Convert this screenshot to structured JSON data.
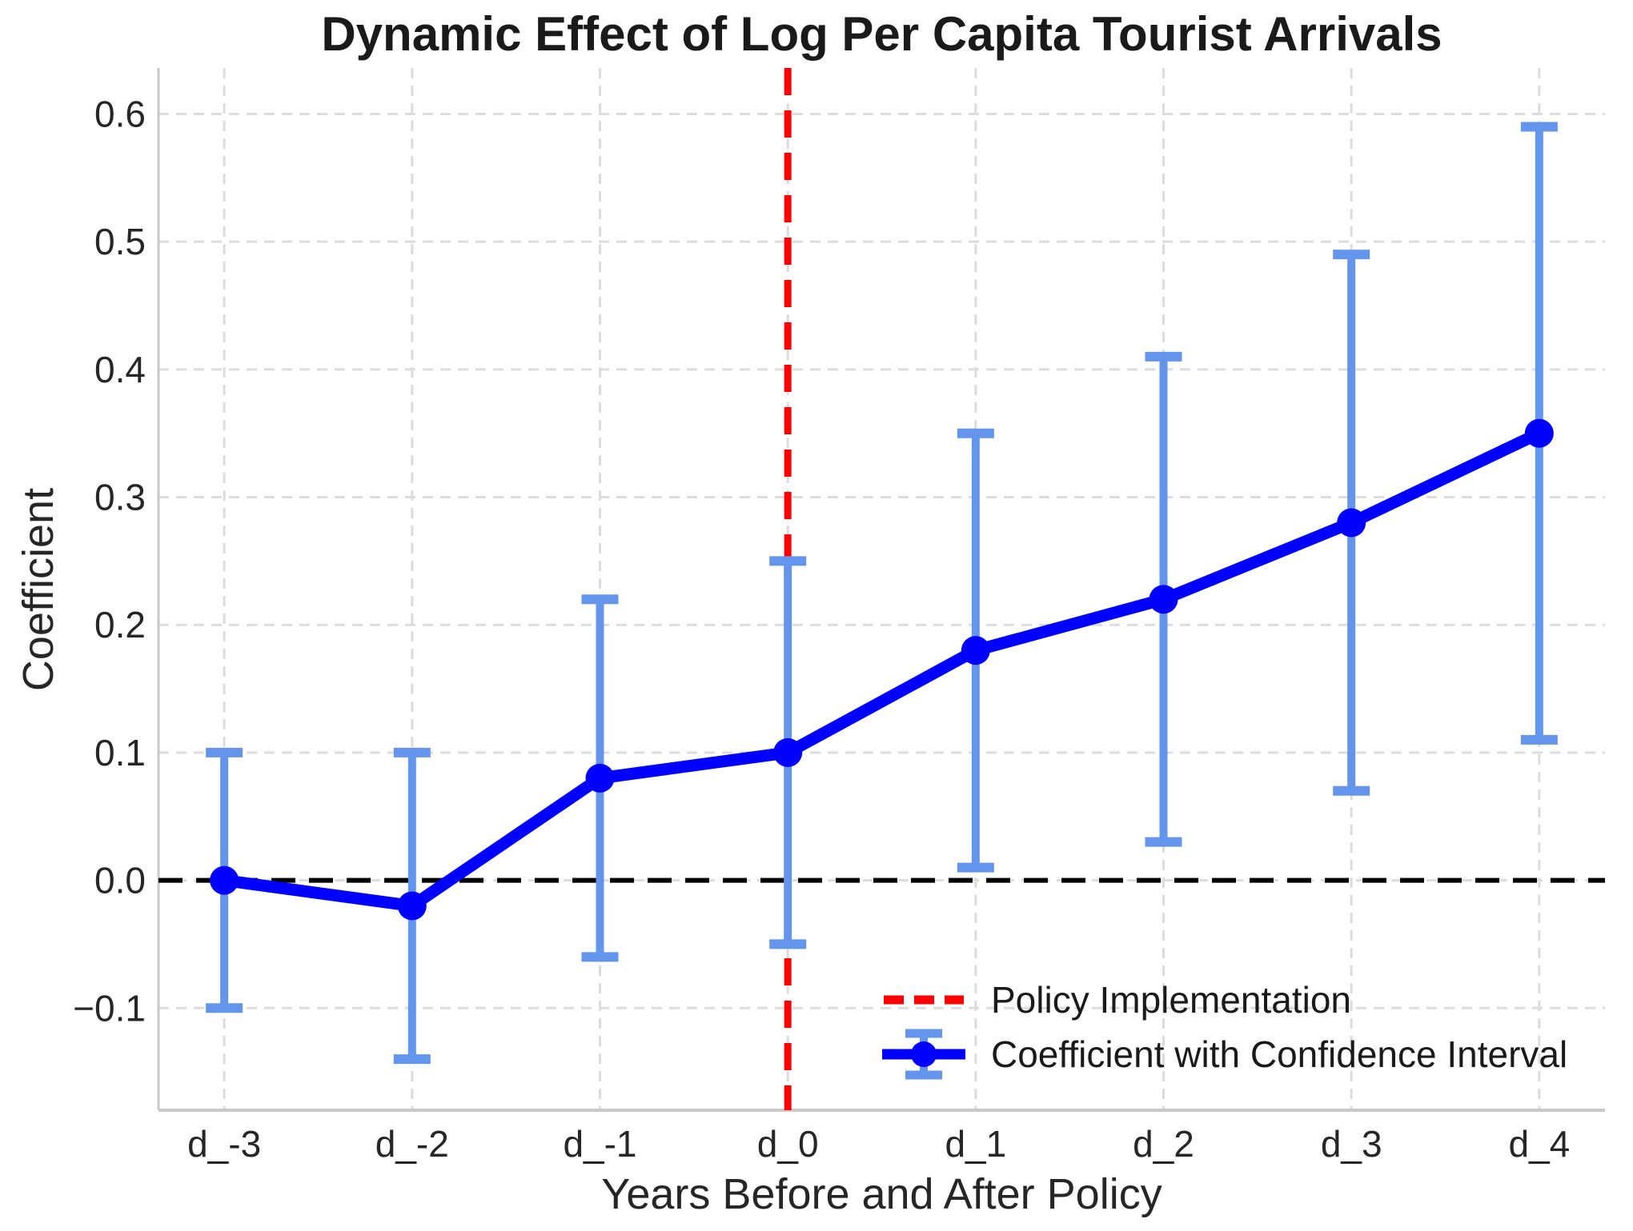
{
  "chart_data": {
    "type": "line",
    "title": "Dynamic Effect of Log Per Capita Tourist Arrivals",
    "xlabel": "Years Before and After Policy",
    "ylabel": "Coefficient",
    "categories": [
      "d_-3",
      "d_-2",
      "d_-1",
      "d_0",
      "d_1",
      "d_2",
      "d_3",
      "d_4"
    ],
    "series": [
      {
        "name": "Coefficient with Confidence Interval",
        "values": [
          0.0,
          -0.02,
          0.08,
          0.1,
          0.18,
          0.22,
          0.28,
          0.35
        ],
        "ci_lower": [
          -0.1,
          -0.14,
          -0.06,
          -0.05,
          0.01,
          0.03,
          0.07,
          0.11
        ],
        "ci_upper": [
          0.1,
          0.1,
          0.22,
          0.25,
          0.35,
          0.41,
          0.49,
          0.59
        ]
      }
    ],
    "ytick_values": [
      0.6,
      0.5,
      0.4,
      0.3,
      0.2,
      0.1,
      0.0,
      -0.1
    ],
    "ytick_labels": [
      "0.6",
      "0.5",
      "0.4",
      "0.3",
      "0.2",
      "0.1",
      "0.0",
      "−0.1"
    ],
    "ylim": [
      -0.18,
      0.636
    ],
    "grid": true,
    "annotations": {
      "zero_line_y": 0,
      "policy_vline_index": 3
    },
    "legend": {
      "position": "lower right",
      "entries": [
        {
          "label": "Policy Implementation",
          "marker": "red-dashed-line"
        },
        {
          "label": "Coefficient with Confidence Interval",
          "marker": "blue-errorbar"
        }
      ]
    },
    "colors": {
      "line": "#0000ff",
      "marker": "#0000ff",
      "errorbar": "#6495ed",
      "policy_line": "#ff0000",
      "zero_line": "#000000",
      "grid": "#dcdcdc",
      "spine": "#c9c9c9",
      "tick_text": "#262626"
    }
  }
}
